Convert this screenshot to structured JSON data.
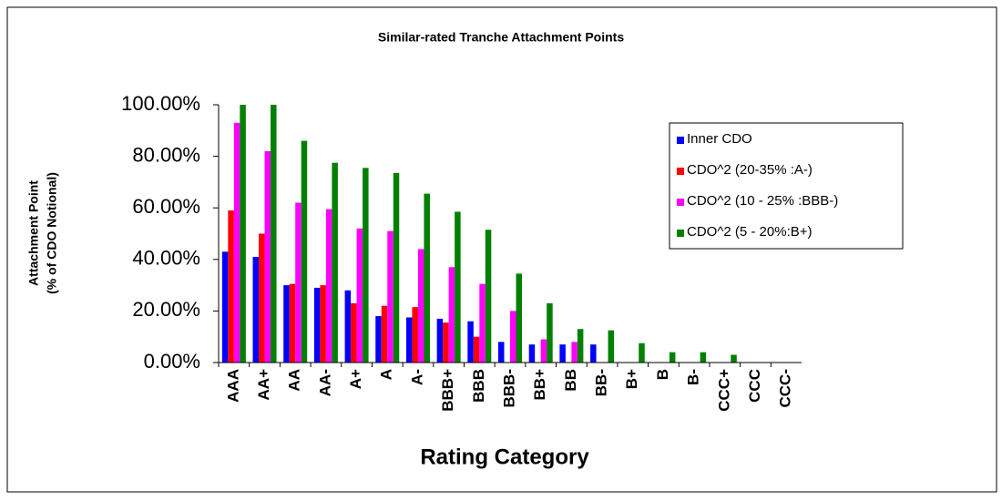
{
  "chart_data": {
    "type": "bar",
    "title": "Similar-rated Tranche Attachment Points",
    "y_label": [
      "Attachment Point",
      "(% of CDO Notional)"
    ],
    "x_label": "Rating Category",
    "categories": [
      "AAA",
      "AA+",
      "AA",
      "AA-",
      "A+",
      "A",
      "A-",
      "BBB+",
      "BBB",
      "BBB-",
      "BB+",
      "BB",
      "BB-",
      "B+",
      "B",
      "B-",
      "CCC+",
      "CCC",
      "CCC-"
    ],
    "series": [
      {
        "name": "Inner CDO",
        "color": "#0000ff",
        "values": [
          43,
          41,
          30,
          29,
          28,
          18,
          17.5,
          17,
          16,
          8,
          7,
          7,
          7,
          0,
          0,
          0,
          0,
          0,
          0
        ]
      },
      {
        "name": "CDO^2 (20-35% :A-)",
        "color": "#ff0000",
        "values": [
          59,
          50,
          30.5,
          30,
          23,
          22,
          21.5,
          15.5,
          10,
          0,
          0,
          0,
          0,
          0,
          0,
          0,
          0,
          0,
          0
        ]
      },
      {
        "name": "CDO^2 (10 - 25% :BBB-)",
        "color": "#ff00ff",
        "values": [
          93,
          82,
          62,
          59.5,
          52,
          51,
          44,
          37,
          30.5,
          20,
          9,
          8,
          0,
          0,
          0,
          0,
          0,
          0,
          0
        ]
      },
      {
        "name": "CDO^2 (5 - 20%:B+)",
        "color": "#008000",
        "values": [
          100,
          100,
          86,
          77.5,
          75.5,
          73.5,
          65.5,
          58.5,
          51.5,
          34.5,
          23,
          13,
          12.5,
          7.5,
          4,
          4,
          3,
          0,
          0
        ]
      }
    ],
    "ylim": [
      0,
      100
    ],
    "yticks": [
      {
        "value": 0,
        "label": "0.00%"
      },
      {
        "value": 20,
        "label": "20.00%"
      },
      {
        "value": 40,
        "label": "40.00%"
      },
      {
        "value": 60,
        "label": "60.00%"
      },
      {
        "value": 80,
        "label": "80.00%"
      },
      {
        "value": 100,
        "label": "100.00%"
      }
    ],
    "legend": "upper right"
  }
}
